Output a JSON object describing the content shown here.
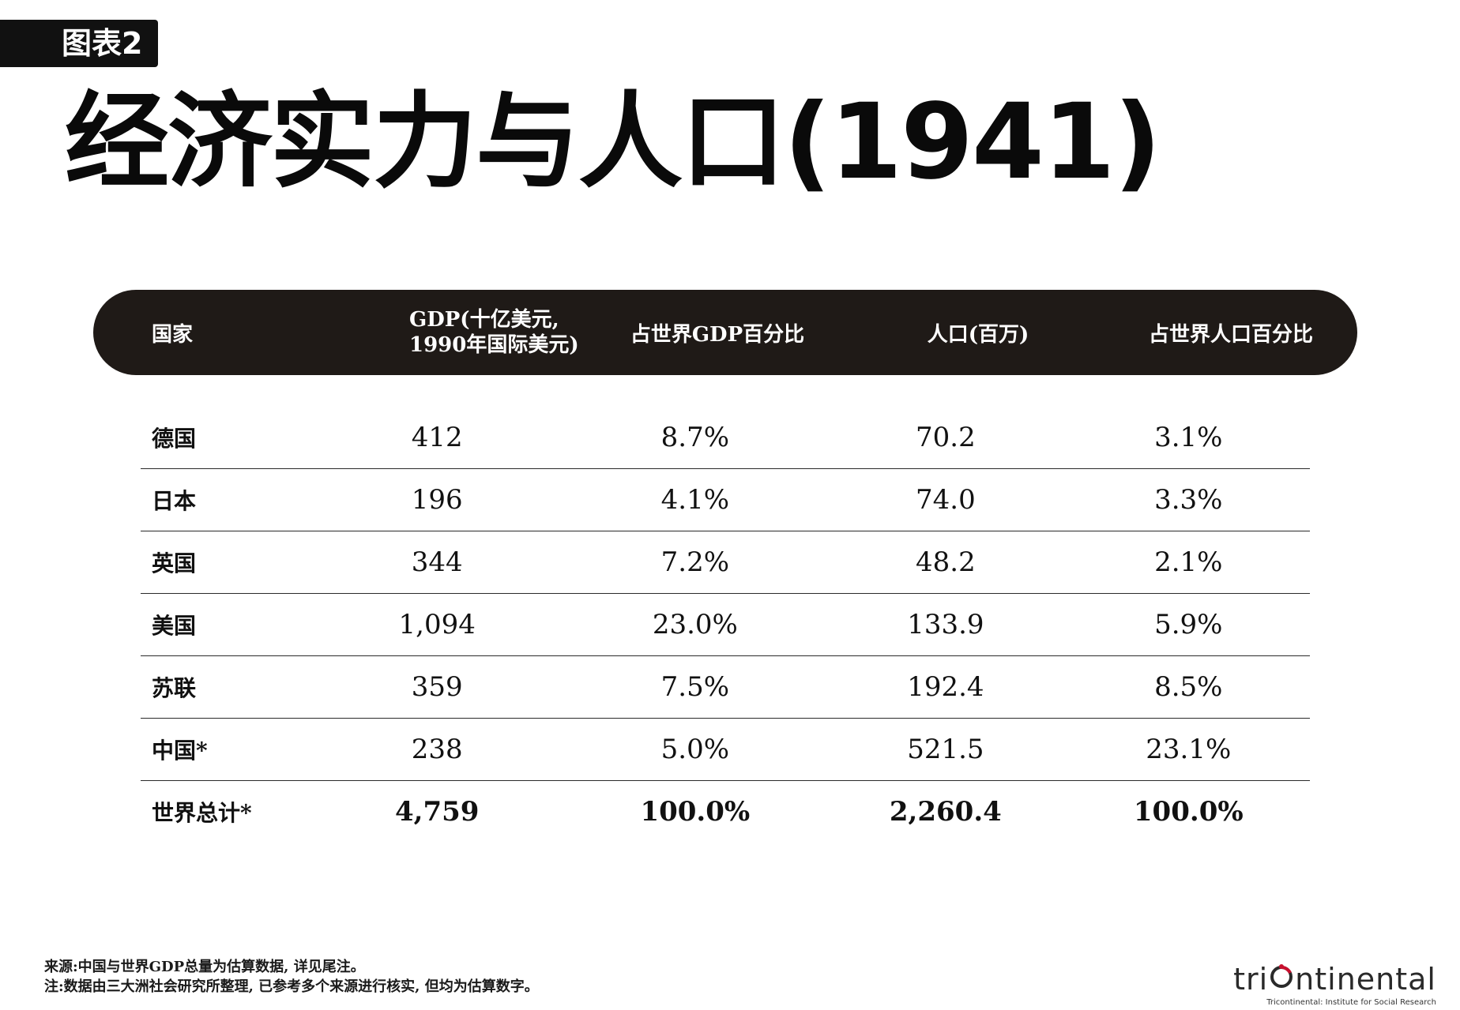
{
  "badge": "图表2",
  "title": "经济实力与人口(1941)",
  "header": {
    "country": "国家",
    "gdp_line1": "GDP(十亿美元,",
    "gdp_line2": "1990年国际美元)",
    "gdp_share": "占世界GDP百分比",
    "population": "人口(百万)",
    "pop_share": "占世界人口百分比"
  },
  "rows": [
    {
      "country": "德国",
      "gdp": "412",
      "gdp_share": "8.7%",
      "population": "70.2",
      "pop_share": "3.1%"
    },
    {
      "country": "日本",
      "gdp": "196",
      "gdp_share": "4.1%",
      "population": "74.0",
      "pop_share": "3.3%"
    },
    {
      "country": "英国",
      "gdp": "344",
      "gdp_share": "7.2%",
      "population": "48.2",
      "pop_share": "2.1%"
    },
    {
      "country": "美国",
      "gdp": "1,094",
      "gdp_share": "23.0%",
      "population": "133.9",
      "pop_share": "5.9%"
    },
    {
      "country": "苏联",
      "gdp": "359",
      "gdp_share": "7.5%",
      "population": "192.4",
      "pop_share": "8.5%"
    },
    {
      "country": "中国*",
      "gdp": "238",
      "gdp_share": "5.0%",
      "population": "521.5",
      "pop_share": "23.1%"
    },
    {
      "country": "世界总计*",
      "gdp": "4,759",
      "gdp_share": "100.0%",
      "population": "2,260.4",
      "pop_share": "100.0%"
    }
  ],
  "footnotes": {
    "source": "来源:中国与世界GDP总量为估算数据, 详见尾注。",
    "note": "注:数据由三大洲社会研究所整理, 已参考多个来源进行核实, 但均为估算数字。"
  },
  "logo": {
    "prefix": "tri",
    "suffix": "ntinental",
    "subtitle": "Tricontinental: Institute for Social Research",
    "accent_color": "#c8102e"
  }
}
